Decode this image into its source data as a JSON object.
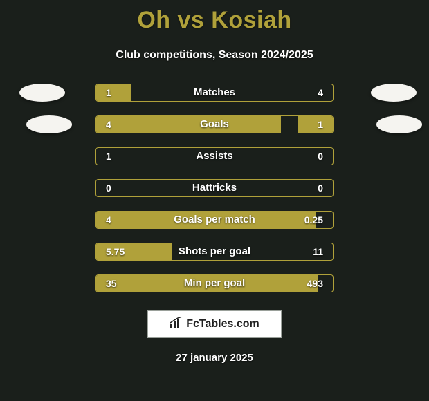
{
  "title": "Oh vs Kosiah",
  "subtitle": "Club competitions, Season 2024/2025",
  "date": "27 january 2025",
  "brand": "FcTables.com",
  "colors": {
    "accent": "#b0a13a",
    "bg": "#1a1f1b",
    "text": "#ffffff",
    "avatar": "#f5f4f0"
  },
  "rows": [
    {
      "label": "Matches",
      "left": "1",
      "right": "4",
      "left_pct": 15,
      "right_pct": 0
    },
    {
      "label": "Goals",
      "left": "4",
      "right": "1",
      "left_pct": 78,
      "right_pct": 15
    },
    {
      "label": "Assists",
      "left": "1",
      "right": "0",
      "left_pct": 0,
      "right_pct": 0
    },
    {
      "label": "Hattricks",
      "left": "0",
      "right": "0",
      "left_pct": 0,
      "right_pct": 0
    },
    {
      "label": "Goals per match",
      "left": "4",
      "right": "0.25",
      "left_pct": 93,
      "right_pct": 0
    },
    {
      "label": "Shots per goal",
      "left": "5.75",
      "right": "11",
      "left_pct": 32,
      "right_pct": 0
    },
    {
      "label": "Min per goal",
      "left": "35",
      "right": "493",
      "left_pct": 94,
      "right_pct": 0
    }
  ]
}
